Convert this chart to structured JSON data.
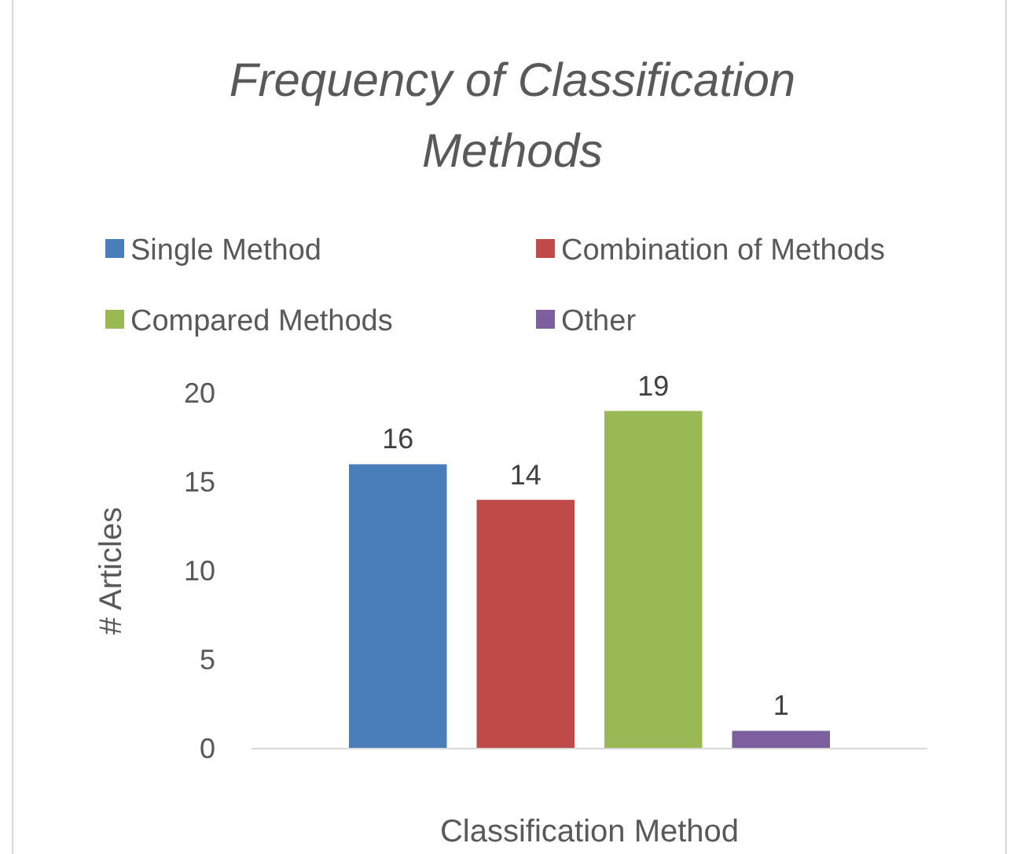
{
  "chart_data": {
    "type": "bar",
    "title": "Frequency of Classification Methods",
    "xlabel": "Classification Method",
    "ylabel": "# Articles",
    "categories": [
      null
    ],
    "series": [
      {
        "name": "Single Method",
        "color": "#4a7ebb",
        "values": [
          16
        ]
      },
      {
        "name": "Combination of Methods",
        "color": "#be4b48",
        "values": [
          14
        ]
      },
      {
        "name": "Compared Methods",
        "color": "#98b954",
        "values": [
          19
        ]
      },
      {
        "name": "Other",
        "color": "#7d5fa0",
        "values": [
          1
        ]
      }
    ],
    "ylim": [
      0,
      20
    ],
    "yticks": [
      0,
      5,
      10,
      15,
      20
    ],
    "grid": false,
    "legend": "top",
    "data_labels": true
  }
}
